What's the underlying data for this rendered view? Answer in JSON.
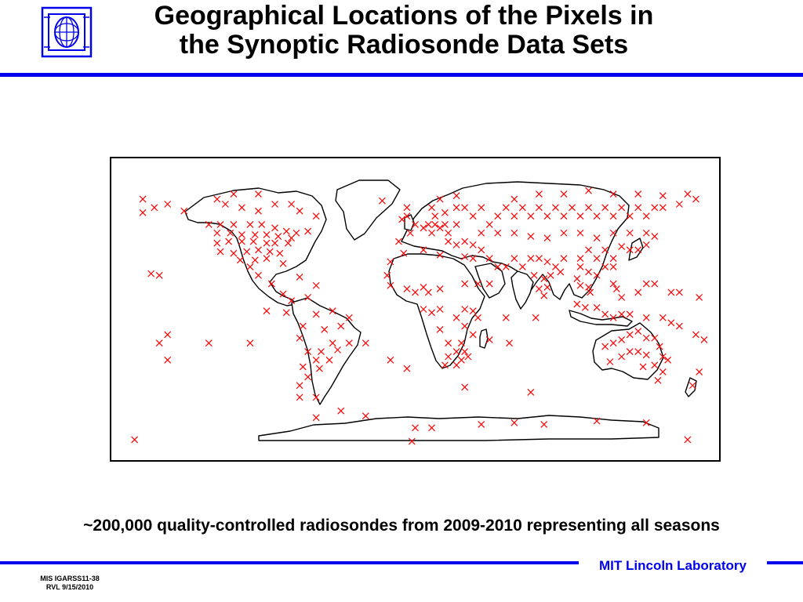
{
  "slide": {
    "title_lines": [
      "Geographical Locations of the Pixels in",
      "the Synoptic Radiosonde Data Sets"
    ],
    "caption": "~200,000 quality-controlled radiosondes from 2009-2010 representing all seasons",
    "organization": "MIT Lincoln Laboratory",
    "slide_ref": [
      "MIS IGARSS11-38",
      "RVL 9/15/2010"
    ],
    "logo_icon": "mit-ll-logo-icon",
    "accent_color": "#0000ee"
  },
  "map": {
    "projection": "equirectangular",
    "marker_color": "#ff0000",
    "marker_shape": "x",
    "outline_color": "#000000",
    "land_color": "#ffffff",
    "stations": [
      [
        -120,
        65
      ],
      [
        -115,
        62
      ],
      [
        -105,
        60
      ],
      [
        -95,
        58
      ],
      [
        -85,
        62
      ],
      [
        -75,
        62
      ],
      [
        -95,
        68
      ],
      [
        -110,
        68
      ],
      [
        -70,
        58
      ],
      [
        -60,
        55
      ],
      [
        -150,
        62
      ],
      [
        -158,
        60
      ],
      [
        -140,
        58
      ],
      [
        -165,
        65
      ],
      [
        -165,
        57
      ],
      [
        -125,
        50
      ],
      [
        -118,
        50
      ],
      [
        -110,
        50
      ],
      [
        -100,
        50
      ],
      [
        -93,
        50
      ],
      [
        -85,
        48
      ],
      [
        -78,
        46
      ],
      [
        -72,
        45
      ],
      [
        -65,
        46
      ],
      [
        -120,
        45
      ],
      [
        -112,
        45
      ],
      [
        -105,
        44
      ],
      [
        -97,
        44
      ],
      [
        -90,
        44
      ],
      [
        -83,
        43
      ],
      [
        -75,
        42
      ],
      [
        -120,
        39
      ],
      [
        -113,
        40
      ],
      [
        -105,
        40
      ],
      [
        -98,
        40
      ],
      [
        -90,
        39
      ],
      [
        -85,
        39
      ],
      [
        -77,
        39
      ],
      [
        -118,
        34
      ],
      [
        -110,
        33
      ],
      [
        -102,
        34
      ],
      [
        -95,
        35
      ],
      [
        -88,
        34
      ],
      [
        -82,
        33
      ],
      [
        -80,
        27
      ],
      [
        -97,
        29
      ],
      [
        -90,
        30
      ],
      [
        -106,
        29
      ],
      [
        -100,
        25
      ],
      [
        -95,
        20
      ],
      [
        -87,
        15
      ],
      [
        -80,
        9
      ],
      [
        -70,
        19
      ],
      [
        -60,
        14
      ],
      [
        -155,
        20
      ],
      [
        -160,
        21
      ],
      [
        -75,
        5
      ],
      [
        -65,
        7
      ],
      [
        -78,
        -2
      ],
      [
        -60,
        -3
      ],
      [
        -50,
        -1
      ],
      [
        -40,
        -5
      ],
      [
        -68,
        -10
      ],
      [
        -55,
        -12
      ],
      [
        -45,
        -10
      ],
      [
        -70,
        -17
      ],
      [
        -50,
        -20
      ],
      [
        -57,
        -25
      ],
      [
        -65,
        -25
      ],
      [
        -47,
        -24
      ],
      [
        -60,
        -30
      ],
      [
        -52,
        -30
      ],
      [
        -68,
        -34
      ],
      [
        -58,
        -35
      ],
      [
        -65,
        -40
      ],
      [
        -70,
        -45
      ],
      [
        -70,
        -52
      ],
      [
        -60,
        -52
      ],
      [
        -40,
        -20
      ],
      [
        -90,
        -1
      ],
      [
        -150,
        -15
      ],
      [
        -155,
        -20
      ],
      [
        -125,
        -20
      ],
      [
        -150,
        -30
      ],
      [
        -100,
        -20
      ],
      [
        -30,
        -20
      ],
      [
        -15,
        -30
      ],
      [
        -5,
        -35
      ],
      [
        -10,
        40
      ],
      [
        -3,
        45
      ],
      [
        0,
        50
      ],
      [
        5,
        48
      ],
      [
        8,
        50
      ],
      [
        12,
        50
      ],
      [
        10,
        45
      ],
      [
        15,
        48
      ],
      [
        18,
        50
      ],
      [
        20,
        45
      ],
      [
        25,
        50
      ],
      [
        12,
        55
      ],
      [
        18,
        57
      ],
      [
        25,
        60
      ],
      [
        10,
        60
      ],
      [
        30,
        60
      ],
      [
        15,
        65
      ],
      [
        25,
        67
      ],
      [
        -5,
        55
      ],
      [
        -8,
        53
      ],
      [
        -20,
        64
      ],
      [
        -5,
        60
      ],
      [
        20,
        40
      ],
      [
        25,
        38
      ],
      [
        30,
        40
      ],
      [
        35,
        38
      ],
      [
        40,
        45
      ],
      [
        45,
        50
      ],
      [
        35,
        55
      ],
      [
        40,
        60
      ],
      [
        50,
        55
      ],
      [
        55,
        60
      ],
      [
        60,
        55
      ],
      [
        65,
        60
      ],
      [
        70,
        55
      ],
      [
        75,
        60
      ],
      [
        80,
        55
      ],
      [
        85,
        60
      ],
      [
        90,
        55
      ],
      [
        95,
        60
      ],
      [
        100,
        55
      ],
      [
        105,
        60
      ],
      [
        110,
        55
      ],
      [
        115,
        60
      ],
      [
        120,
        55
      ],
      [
        125,
        60
      ],
      [
        130,
        55
      ],
      [
        135,
        60
      ],
      [
        140,
        55
      ],
      [
        145,
        60
      ],
      [
        150,
        60
      ],
      [
        160,
        62
      ],
      [
        170,
        65
      ],
      [
        60,
        65
      ],
      [
        75,
        68
      ],
      [
        90,
        68
      ],
      [
        105,
        70
      ],
      [
        120,
        68
      ],
      [
        135,
        68
      ],
      [
        150,
        67
      ],
      [
        165,
        68
      ],
      [
        50,
        45
      ],
      [
        60,
        45
      ],
      [
        70,
        43
      ],
      [
        80,
        42
      ],
      [
        90,
        45
      ],
      [
        100,
        45
      ],
      [
        110,
        42
      ],
      [
        120,
        45
      ],
      [
        130,
        45
      ],
      [
        140,
        45
      ],
      [
        145,
        43
      ],
      [
        40,
        35
      ],
      [
        45,
        30
      ],
      [
        35,
        30
      ],
      [
        30,
        31
      ],
      [
        15,
        32
      ],
      [
        5,
        35
      ],
      [
        -7,
        33
      ],
      [
        -15,
        28
      ],
      [
        -17,
        20
      ],
      [
        -15,
        14
      ],
      [
        -5,
        12
      ],
      [
        0,
        10
      ],
      [
        5,
        13
      ],
      [
        8,
        10
      ],
      [
        15,
        12
      ],
      [
        30,
        15
      ],
      [
        38,
        15
      ],
      [
        45,
        15
      ],
      [
        50,
        25
      ],
      [
        55,
        25
      ],
      [
        60,
        30
      ],
      [
        65,
        25
      ],
      [
        70,
        30
      ],
      [
        75,
        30
      ],
      [
        80,
        28
      ],
      [
        85,
        25
      ],
      [
        72,
        20
      ],
      [
        78,
        18
      ],
      [
        82,
        20
      ],
      [
        88,
        22
      ],
      [
        75,
        12
      ],
      [
        80,
        13
      ],
      [
        78,
        8
      ],
      [
        90,
        30
      ],
      [
        100,
        30
      ],
      [
        105,
        35
      ],
      [
        110,
        30
      ],
      [
        115,
        35
      ],
      [
        120,
        30
      ],
      [
        100,
        25
      ],
      [
        105,
        22
      ],
      [
        110,
        20
      ],
      [
        115,
        25
      ],
      [
        120,
        25
      ],
      [
        125,
        37
      ],
      [
        130,
        35
      ],
      [
        135,
        35
      ],
      [
        140,
        38
      ],
      [
        98,
        18
      ],
      [
        100,
        14
      ],
      [
        105,
        13
      ],
      [
        106,
        10
      ],
      [
        120,
        15
      ],
      [
        122,
        12
      ],
      [
        125,
        7
      ],
      [
        135,
        10
      ],
      [
        140,
        15
      ],
      [
        145,
        15
      ],
      [
        155,
        10
      ],
      [
        160,
        10
      ],
      [
        172,
        7
      ],
      [
        98,
        3
      ],
      [
        103,
        1
      ],
      [
        110,
        1
      ],
      [
        115,
        -3
      ],
      [
        120,
        -5
      ],
      [
        125,
        -3
      ],
      [
        130,
        -3
      ],
      [
        140,
        -5
      ],
      [
        150,
        -5
      ],
      [
        155,
        -8
      ],
      [
        160,
        -10
      ],
      [
        170,
        -15
      ],
      [
        175,
        -18
      ],
      [
        115,
        -22
      ],
      [
        120,
        -20
      ],
      [
        125,
        -18
      ],
      [
        130,
        -15
      ],
      [
        135,
        -13
      ],
      [
        140,
        -17
      ],
      [
        145,
        -17
      ],
      [
        118,
        -31
      ],
      [
        125,
        -28
      ],
      [
        130,
        -25
      ],
      [
        135,
        -25
      ],
      [
        140,
        -27
      ],
      [
        148,
        -22
      ],
      [
        150,
        -28
      ],
      [
        153,
        -30
      ],
      [
        145,
        -33
      ],
      [
        138,
        -34
      ],
      [
        150,
        -37
      ],
      [
        147,
        -42
      ],
      [
        172,
        -37
      ],
      [
        168,
        -45
      ],
      [
        30,
        0
      ],
      [
        35,
        -1
      ],
      [
        38,
        -5
      ],
      [
        25,
        -5
      ],
      [
        30,
        -10
      ],
      [
        35,
        -15
      ],
      [
        28,
        -20
      ],
      [
        20,
        -20
      ],
      [
        25,
        -25
      ],
      [
        30,
        -25
      ],
      [
        20,
        -28
      ],
      [
        28,
        -30
      ],
      [
        32,
        -28
      ],
      [
        18,
        -33
      ],
      [
        25,
        -33
      ],
      [
        45,
        -18
      ],
      [
        57,
        -20
      ],
      [
        73,
        -5
      ],
      [
        55,
        -5
      ],
      [
        10,
        -2
      ],
      [
        5,
        0
      ],
      [
        15,
        -12
      ],
      [
        15,
        0
      ],
      [
        -60,
        -64
      ],
      [
        -45,
        -60
      ],
      [
        -30,
        -63
      ],
      [
        0,
        -70
      ],
      [
        10,
        -70
      ],
      [
        40,
        -68
      ],
      [
        60,
        -67
      ],
      [
        78,
        -68
      ],
      [
        110,
        -66
      ],
      [
        140,
        -67
      ],
      [
        165,
        -77
      ],
      [
        -170,
        -77
      ],
      [
        30,
        -46
      ],
      [
        70,
        -49
      ],
      [
        -2,
        -78
      ]
    ]
  }
}
